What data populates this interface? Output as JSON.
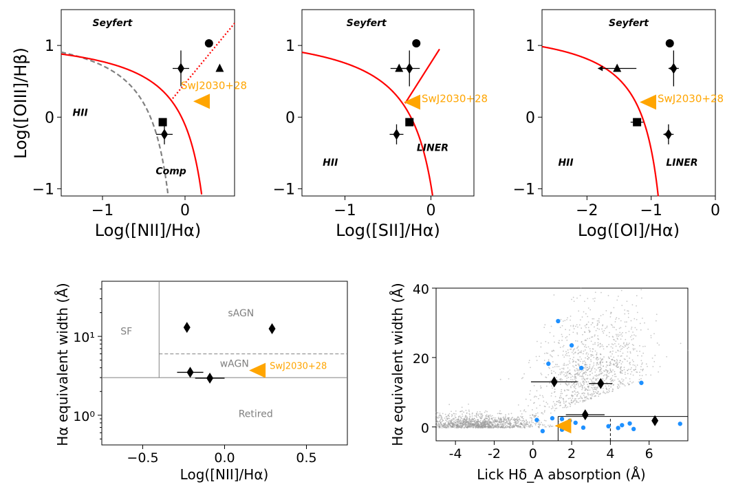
{
  "colors": {
    "curve": "#ff0000",
    "source": "#ffa500",
    "points": "#000000",
    "grey": "#808080",
    "blue": "#1e90ff",
    "scatter": "#999999"
  },
  "chart_data": [
    {
      "type": "scatter",
      "title": "",
      "xlabel": "Log([NII]/Hα)",
      "ylabel": "Log([OIII]/Hβ)",
      "xlim": [
        -1.5,
        0.6
      ],
      "ylim": [
        -1.1,
        1.5
      ],
      "xticks": [
        {
          "v": -1,
          "label": "−1"
        },
        {
          "v": 0,
          "label": "0"
        }
      ],
      "yticks": [
        {
          "v": -1,
          "label": "−1"
        },
        {
          "v": 0,
          "label": "0"
        },
        {
          "v": 1,
          "label": "1"
        }
      ],
      "regions": [
        {
          "name": "Seyfert",
          "x": -0.88,
          "y": 1.27
        },
        {
          "name": "HII",
          "x": -1.27,
          "y": 0.02
        },
        {
          "name": "Comp",
          "x": -0.17,
          "y": -0.8
        }
      ],
      "curves": [
        "kauffmann",
        "kewley_nii",
        "seyfert_liner_nii"
      ],
      "source": {
        "label": "SwJ2030+28",
        "x": 0.2,
        "y": 0.22
      },
      "points": [
        {
          "marker": "circle",
          "x": 0.29,
          "y": 1.03,
          "xerr": 0,
          "yerr": 0
        },
        {
          "marker": "diamond",
          "x": -0.05,
          "y": 0.68,
          "xerr": 0.1,
          "yerr": 0.25
        },
        {
          "marker": "triangle",
          "x": 0.42,
          "y": 0.68,
          "xerr": 0,
          "yerr": 0
        },
        {
          "marker": "square",
          "x": -0.27,
          "y": -0.07,
          "xerr": 0,
          "yerr": 0
        },
        {
          "marker": "diamond",
          "x": -0.25,
          "y": -0.24,
          "xerr": 0.1,
          "yerr": 0.14
        }
      ]
    },
    {
      "type": "scatter",
      "title": "",
      "xlabel": "Log([SII]/Hα)",
      "ylabel": "",
      "xlim": [
        -1.5,
        0.5
      ],
      "ylim": [
        -1.1,
        1.5
      ],
      "xticks": [
        {
          "v": -1,
          "label": "−1"
        },
        {
          "v": 0,
          "label": "0"
        }
      ],
      "yticks": [
        {
          "v": -1,
          "label": "−1"
        },
        {
          "v": 0,
          "label": "0"
        },
        {
          "v": 1,
          "label": "1"
        }
      ],
      "regions": [
        {
          "name": "Seyfert",
          "x": -0.75,
          "y": 1.27
        },
        {
          "name": "HII",
          "x": -1.17,
          "y": -0.68
        },
        {
          "name": "LINER",
          "x": 0.02,
          "y": -0.47
        }
      ],
      "curves": [
        "kewley_sii",
        "seyfert_liner_sii"
      ],
      "source": {
        "label": "SwJ2030+28",
        "x": -0.22,
        "y": 0.21
      },
      "points": [
        {
          "marker": "circle",
          "x": -0.17,
          "y": 1.03,
          "xerr": 0,
          "yerr": 0
        },
        {
          "marker": "diamond",
          "x": -0.25,
          "y": 0.68,
          "xerr": 0.12,
          "yerr": 0.25
        },
        {
          "marker": "triangle",
          "x": -0.37,
          "y": 0.68,
          "xerr": 0.1,
          "yerr": 0
        },
        {
          "marker": "square",
          "x": -0.25,
          "y": -0.07,
          "xerr": 0,
          "yerr": 0
        },
        {
          "marker": "diamond",
          "x": -0.4,
          "y": -0.24,
          "xerr": 0.08,
          "yerr": 0.14
        }
      ]
    },
    {
      "type": "scatter",
      "title": "",
      "xlabel": "Log([OI]/Hα)",
      "ylabel": "",
      "xlim": [
        -2.7,
        0
      ],
      "ylim": [
        -1.1,
        1.5
      ],
      "xticks": [
        {
          "v": -2,
          "label": "−2"
        },
        {
          "v": -1,
          "label": "−1"
        },
        {
          "v": 0,
          "label": "0"
        }
      ],
      "yticks": [
        {
          "v": -1,
          "label": "−1"
        },
        {
          "v": 0,
          "label": "0"
        },
        {
          "v": 1,
          "label": "1"
        }
      ],
      "regions": [
        {
          "name": "Seyfert",
          "x": -1.35,
          "y": 1.27
        },
        {
          "name": "HII",
          "x": -2.33,
          "y": -0.68
        },
        {
          "name": "LINER",
          "x": -0.52,
          "y": -0.68
        }
      ],
      "curves": [
        "kewley_oi"
      ],
      "source": {
        "label": "SwJ2030+28",
        "x": -1.05,
        "y": 0.21
      },
      "points": [
        {
          "marker": "circle",
          "x": -0.71,
          "y": 1.03,
          "xerr": 0,
          "yerr": 0
        },
        {
          "marker": "diamond",
          "x": -0.65,
          "y": 0.68,
          "xerr": 0.08,
          "yerr": 0.25,
          "upperx": true
        },
        {
          "marker": "triangle",
          "x": -1.53,
          "y": 0.68,
          "xerr": 0.3,
          "yerr": 0,
          "upperx": true
        },
        {
          "marker": "square",
          "x": -1.22,
          "y": -0.07,
          "xerr": 0.1,
          "yerr": 0
        },
        {
          "marker": "diamond",
          "x": -0.73,
          "y": -0.24,
          "xerr": 0.08,
          "yerr": 0.14,
          "upperx": true
        }
      ]
    },
    {
      "type": "scatter",
      "title": "",
      "xlabel": "Log([NII]/Hα)",
      "ylabel": "Hα equivalent width (Å)",
      "xscale": "linear",
      "yscale": "log",
      "xlim": [
        -0.75,
        0.75
      ],
      "ylim": [
        0.42,
        50
      ],
      "xticks": [
        {
          "v": -0.5,
          "label": "−0.5"
        },
        {
          "v": 0,
          "label": "0.0"
        },
        {
          "v": 0.5,
          "label": "0.5"
        }
      ],
      "yticks": [
        {
          "v": 1,
          "label": "10⁰"
        },
        {
          "v": 10,
          "label": "10¹"
        }
      ],
      "regions": [
        {
          "name": "SF",
          "x": -0.6,
          "y": 10.5
        },
        {
          "name": "sAGN",
          "x": 0.1,
          "y": 18
        },
        {
          "name": "wAGN",
          "x": 0.06,
          "y": 4.1
        },
        {
          "name": "Retired",
          "x": 0.19,
          "y": 0.95
        }
      ],
      "lines": [
        {
          "kind": "vertical",
          "x": -0.4,
          "y_from": 3,
          "y_to": 50
        },
        {
          "kind": "horizontal_dashed",
          "y": 6,
          "x_from": -0.4,
          "x_to": 0.75
        },
        {
          "kind": "horizontal",
          "y": 3,
          "x_from": -0.75,
          "x_to": 0.75
        }
      ],
      "source": {
        "label": "SwJ2030+28",
        "x": 0.2,
        "y": 3.7
      },
      "points": [
        {
          "marker": "diamond",
          "x": -0.23,
          "y": 13,
          "xerr": 0,
          "yerr": 0
        },
        {
          "marker": "diamond",
          "x": 0.29,
          "y": 12.5,
          "xerr": 0,
          "yerr": 0
        },
        {
          "marker": "diamond",
          "x": -0.21,
          "y": 3.5,
          "xerr": 0.08,
          "yerr": 0
        },
        {
          "marker": "diamond",
          "x": -0.09,
          "y": 2.95,
          "xerr": 0.09,
          "yerr": 0
        }
      ]
    },
    {
      "type": "scatter",
      "title": "",
      "xlabel": "Lick Hδ_A absorption (Å)",
      "ylabel": "Hα equivalent width (Å)",
      "xlim": [
        -5,
        8
      ],
      "ylim": [
        -4,
        40
      ],
      "xticks": [
        {
          "v": -4,
          "label": "-4"
        },
        {
          "v": -2,
          "label": "-2"
        },
        {
          "v": 0,
          "label": "0"
        },
        {
          "v": 2,
          "label": "2"
        },
        {
          "v": 4,
          "label": "4"
        },
        {
          "v": 6,
          "label": "6"
        }
      ],
      "yticks": [
        {
          "v": 0,
          "label": "0"
        },
        {
          "v": 20,
          "label": "20"
        },
        {
          "v": 40,
          "label": "40"
        }
      ],
      "background": "SDSS galaxy cloud (grey)",
      "lines": [
        {
          "kind": "box_top",
          "y": 3,
          "x_from": 1.3,
          "x_to": 8
        },
        {
          "kind": "vertical",
          "x": 1.3,
          "y_from": -4,
          "y_to": 3
        },
        {
          "kind": "vertical_dashed",
          "x": 4,
          "y_from": -4,
          "y_to": 3
        }
      ],
      "source": {
        "label": "",
        "x": 1.55,
        "y": 0.3
      },
      "points": [
        {
          "marker": "diamond",
          "x": 1.1,
          "y": 13,
          "xerr": 1.2,
          "yerr": 0
        },
        {
          "marker": "diamond",
          "x": 3.5,
          "y": 12.5,
          "xerr": 0.6,
          "yerr": 0
        },
        {
          "marker": "diamond",
          "x": 2.7,
          "y": 3.5,
          "xerr": 1.0,
          "yerr": 0
        },
        {
          "marker": "diamond",
          "x": 6.3,
          "y": 1.8,
          "xerr": 0,
          "yerr": 0
        }
      ],
      "blue_points": [
        {
          "x": 1.3,
          "y": 30.5
        },
        {
          "x": 2.0,
          "y": 23.5
        },
        {
          "x": 2.5,
          "y": 17.0
        },
        {
          "x": 0.8,
          "y": 18.2
        },
        {
          "x": 5.6,
          "y": 12.7
        },
        {
          "x": 0.2,
          "y": 2.0
        },
        {
          "x": 0.5,
          "y": -1.2
        },
        {
          "x": 1.5,
          "y": 2.3
        },
        {
          "x": 1.0,
          "y": 2.5
        },
        {
          "x": 1.9,
          "y": 1.8
        },
        {
          "x": 2.2,
          "y": 1.2
        },
        {
          "x": 1.7,
          "y": 0.3
        },
        {
          "x": 1.8,
          "y": -0.5
        },
        {
          "x": 2.6,
          "y": -0.2
        },
        {
          "x": 3.9,
          "y": 0.2
        },
        {
          "x": 4.4,
          "y": -0.3
        },
        {
          "x": 5.2,
          "y": -0.6
        },
        {
          "x": 5.0,
          "y": 1.0
        },
        {
          "x": 7.6,
          "y": 0.9
        },
        {
          "x": 1.5,
          "y": -0.8
        },
        {
          "x": 4.6,
          "y": 0.5
        }
      ]
    }
  ]
}
